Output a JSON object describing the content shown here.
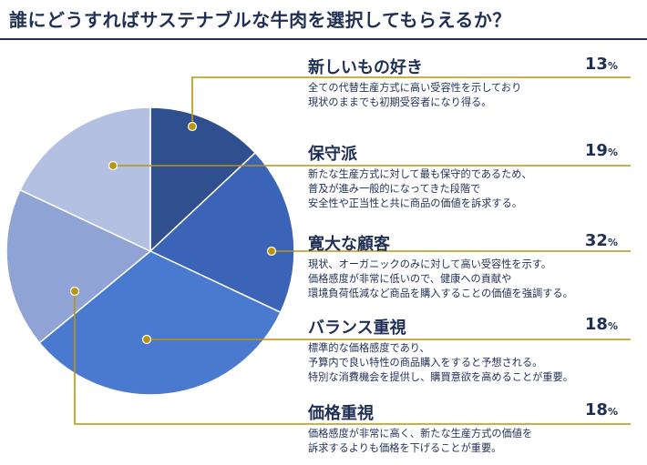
{
  "title": "誰にどうすればサステナブルな牛肉を選択してもらえるか？",
  "colors": {
    "title": "#1f2f55",
    "leader_line": "#b8960c",
    "segments": [
      "#2f4f8f",
      "#3b64b8",
      "#4a79d0",
      "#8fa3d4",
      "#b3c0e2"
    ]
  },
  "chart_data": {
    "type": "pie",
    "unit": "%",
    "segments": [
      {
        "name": "新しいもの好き",
        "value": 13,
        "description": "全ての代替生産方式に高い受容性を示しており\n現状のままでも初期受容者になり得る。"
      },
      {
        "name": "保守派",
        "value": 19,
        "description": "新たな生産方式に対して最も保守的であるため、\n普及が進み一般的になってきた段階で\n安全性や正当性と共に商品の価値を訴求する。"
      },
      {
        "name": "寛大な顧客",
        "value": 32,
        "description": "現状、オーガニックのみに対して高い受容性を示す。\n価格感度が非常に低いので、健康への貢献や\n環境負荷低減など商品を購入することの価値を強調する。"
      },
      {
        "name": "バランス重視",
        "value": 18,
        "description": "標準的な価格感度であり、\n予算内で良い特性の商品購入をすると予想される。\n特別な消費機会を提供し、購買意欲を高めることが重要。"
      },
      {
        "name": "価格重視",
        "value": 18,
        "description": "価格感度が非常に高く、新たな生産方式の価値を\n訴求するよりも価格を下げることが重要。"
      }
    ]
  }
}
